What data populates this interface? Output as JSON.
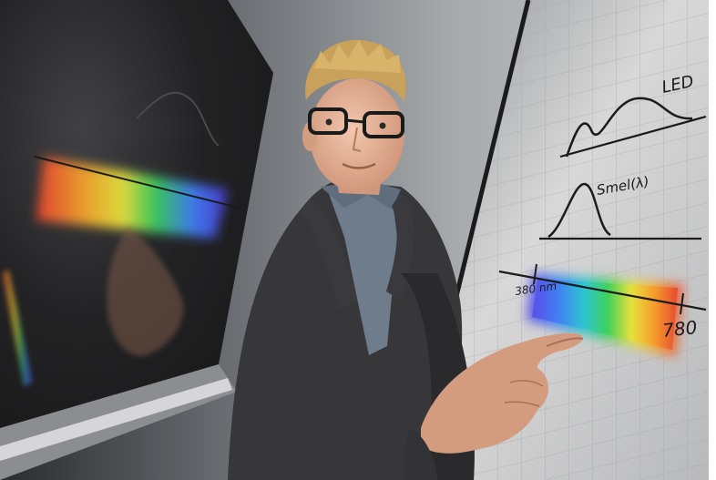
{
  "photo": {
    "subject": "person-at-whiteboard",
    "board": {
      "label_led": "LED",
      "label_smel": "Smel(λ)",
      "label_380": "380 nm",
      "label_780": "780"
    },
    "colors": {
      "board": "#d9d9d9",
      "background": "#2a2a2c",
      "cardigan": "#2f2f31",
      "shirt": "#6f7d8e",
      "hair": "#c9a15a",
      "skin": "#e7b59a"
    }
  }
}
